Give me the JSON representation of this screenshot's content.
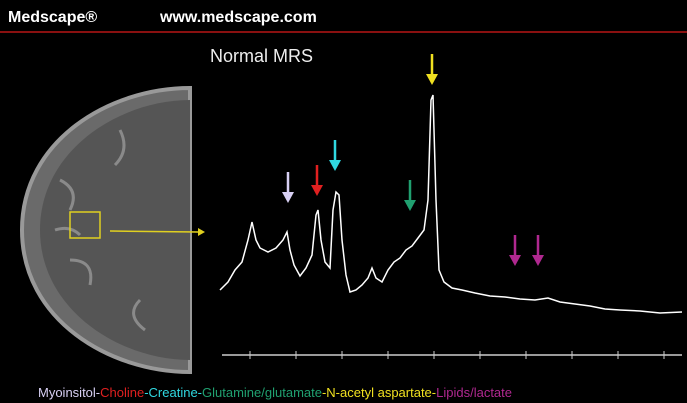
{
  "header": {
    "brand": "Medscape®",
    "url": "www.medscape.com"
  },
  "title": "Normal MRS",
  "legend": [
    {
      "text": "Myoinsitol-",
      "color": "#d8d0f4"
    },
    {
      "text": "Choline",
      "color": "#e02020"
    },
    {
      "text": "-Creatine-",
      "color": "#30d8e0"
    },
    {
      "text": "Glutamine/glutamate",
      "color": "#20a070"
    },
    {
      "text": "-N-acetyl aspartate-",
      "color": "#f0e020"
    },
    {
      "text": "Lipids/lactate",
      "color": "#b02890"
    }
  ]
}
